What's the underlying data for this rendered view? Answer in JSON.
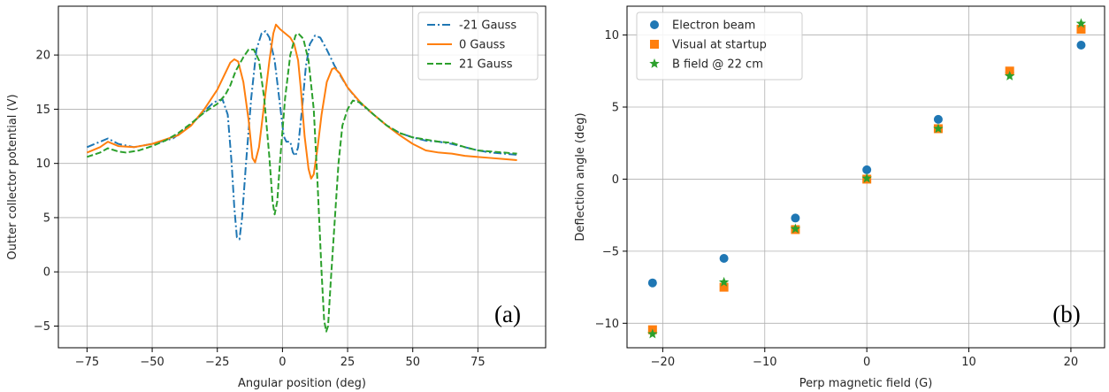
{
  "chart_data": [
    {
      "type": "line",
      "panel_label": "(a)",
      "xlabel": "Angular position (deg)",
      "ylabel": "Outter collector potential (V)",
      "xlim": [
        -86,
        101
      ],
      "ylim": [
        -7,
        24.5
      ],
      "xticks": [
        -75,
        -50,
        -25,
        0,
        25,
        50,
        75
      ],
      "xtick_labels": [
        "−75",
        "−50",
        "−25",
        "0",
        "25",
        "50",
        "75"
      ],
      "yticks": [
        -5,
        0,
        5,
        10,
        15,
        20
      ],
      "ytick_labels": [
        "−5",
        "0",
        "5",
        "10",
        "15",
        "20"
      ],
      "grid": true,
      "legend_position": "top-right",
      "series": [
        {
          "name": "-21 Gauss",
          "color": "#1f77b4",
          "style": "dashdot",
          "points": [
            [
              -75,
              11.5
            ],
            [
              -70,
              12.0
            ],
            [
              -67,
              12.3
            ],
            [
              -63,
              11.8
            ],
            [
              -57,
              11.5
            ],
            [
              -50,
              11.8
            ],
            [
              -42,
              12.3
            ],
            [
              -35,
              13.6
            ],
            [
              -30,
              14.8
            ],
            [
              -27,
              15.5
            ],
            [
              -25,
              15.8
            ],
            [
              -23,
              15.9
            ],
            [
              -21,
              14.5
            ],
            [
              -19.5,
              10.0
            ],
            [
              -18.5,
              6.0
            ],
            [
              -17.5,
              3.2
            ],
            [
              -16.5,
              3.0
            ],
            [
              -15.5,
              5.0
            ],
            [
              -14,
              10.0
            ],
            [
              -12,
              16.0
            ],
            [
              -10,
              20.5
            ],
            [
              -8,
              22.0
            ],
            [
              -6.5,
              22.2
            ],
            [
              -5,
              21.6
            ],
            [
              -3,
              19.5
            ],
            [
              -1,
              15.5
            ],
            [
              0.5,
              12.5
            ],
            [
              1.5,
              12.0
            ],
            [
              3,
              12.0
            ],
            [
              4,
              11.0
            ],
            [
              5,
              10.7
            ],
            [
              6,
              11.5
            ],
            [
              7.5,
              15.0
            ],
            [
              9,
              19.0
            ],
            [
              10.5,
              21.0
            ],
            [
              12.5,
              21.8
            ],
            [
              14.5,
              21.6
            ],
            [
              17,
              20.5
            ],
            [
              20,
              19.0
            ],
            [
              25,
              17.0
            ],
            [
              30,
              15.5
            ],
            [
              35,
              14.5
            ],
            [
              40,
              13.5
            ],
            [
              45,
              12.8
            ],
            [
              50,
              12.4
            ],
            [
              55,
              12.1
            ],
            [
              60,
              12.0
            ],
            [
              65,
              11.8
            ],
            [
              70,
              11.5
            ],
            [
              75,
              11.2
            ],
            [
              80,
              11.0
            ],
            [
              85,
              10.9
            ],
            [
              90,
              10.8
            ]
          ]
        },
        {
          "name": "0 Gauss",
          "color": "#ff7f0e",
          "style": "solid",
          "points": [
            [
              -75,
              11.0
            ],
            [
              -70,
              11.5
            ],
            [
              -67,
              12.0
            ],
            [
              -63,
              11.6
            ],
            [
              -57,
              11.5
            ],
            [
              -50,
              11.8
            ],
            [
              -45,
              12.2
            ],
            [
              -40,
              12.6
            ],
            [
              -35,
              13.5
            ],
            [
              -30,
              15.0
            ],
            [
              -25,
              16.8
            ],
            [
              -22,
              18.3
            ],
            [
              -20,
              19.3
            ],
            [
              -18.5,
              19.6
            ],
            [
              -17,
              19.4
            ],
            [
              -15,
              17.5
            ],
            [
              -13,
              14.0
            ],
            [
              -11.5,
              10.5
            ],
            [
              -10.5,
              10.1
            ],
            [
              -9,
              11.5
            ],
            [
              -7,
              15.5
            ],
            [
              -5,
              19.5
            ],
            [
              -3.5,
              22.0
            ],
            [
              -2.5,
              22.8
            ],
            [
              -1,
              22.4
            ],
            [
              1,
              22.0
            ],
            [
              3,
              21.6
            ],
            [
              4.5,
              21.0
            ],
            [
              6,
              19.5
            ],
            [
              7,
              17.0
            ],
            [
              8.5,
              12.5
            ],
            [
              10,
              9.5
            ],
            [
              11,
              8.6
            ],
            [
              12,
              9.0
            ],
            [
              13.5,
              11.5
            ],
            [
              15,
              14.5
            ],
            [
              17,
              17.5
            ],
            [
              19,
              18.7
            ],
            [
              20,
              18.8
            ],
            [
              22,
              18.3
            ],
            [
              25,
              17.0
            ],
            [
              30,
              15.6
            ],
            [
              35,
              14.5
            ],
            [
              40,
              13.5
            ],
            [
              45,
              12.6
            ],
            [
              50,
              11.8
            ],
            [
              55,
              11.2
            ],
            [
              60,
              11.0
            ],
            [
              65,
              10.9
            ],
            [
              70,
              10.7
            ],
            [
              75,
              10.6
            ],
            [
              80,
              10.5
            ],
            [
              85,
              10.4
            ],
            [
              90,
              10.3
            ]
          ]
        },
        {
          "name": "21 Gauss",
          "color": "#2ca02c",
          "style": "dashed",
          "points": [
            [
              -75,
              10.6
            ],
            [
              -70,
              11.0
            ],
            [
              -67,
              11.4
            ],
            [
              -63,
              11.1
            ],
            [
              -60,
              11.0
            ],
            [
              -55,
              11.2
            ],
            [
              -50,
              11.6
            ],
            [
              -45,
              12.1
            ],
            [
              -40,
              12.8
            ],
            [
              -35,
              13.7
            ],
            [
              -30,
              14.7
            ],
            [
              -25,
              15.5
            ],
            [
              -22,
              16.3
            ],
            [
              -20,
              17.2
            ],
            [
              -18,
              18.5
            ],
            [
              -15,
              19.8
            ],
            [
              -13,
              20.5
            ],
            [
              -11,
              20.5
            ],
            [
              -9,
              19.5
            ],
            [
              -7,
              16.0
            ],
            [
              -5,
              10.5
            ],
            [
              -3.8,
              6.5
            ],
            [
              -3,
              5.3
            ],
            [
              -2,
              6.5
            ],
            [
              -1,
              10.0
            ],
            [
              1,
              16.0
            ],
            [
              3,
              20.0
            ],
            [
              5,
              21.8
            ],
            [
              6,
              22.0
            ],
            [
              8,
              21.5
            ],
            [
              10,
              19.5
            ],
            [
              12,
              15.0
            ],
            [
              13.5,
              8.0
            ],
            [
              15,
              0.0
            ],
            [
              16,
              -4.5
            ],
            [
              16.8,
              -5.5
            ],
            [
              17.5,
              -5.0
            ],
            [
              18.5,
              -1.0
            ],
            [
              20,
              4.5
            ],
            [
              21.5,
              10.0
            ],
            [
              23,
              13.5
            ],
            [
              25,
              15.0
            ],
            [
              27,
              15.8
            ],
            [
              30,
              15.6
            ],
            [
              35,
              14.5
            ],
            [
              40,
              13.5
            ],
            [
              45,
              12.8
            ],
            [
              50,
              12.4
            ],
            [
              55,
              12.2
            ],
            [
              60,
              12.0
            ],
            [
              65,
              11.9
            ],
            [
              70,
              11.5
            ],
            [
              75,
              11.2
            ],
            [
              80,
              11.1
            ],
            [
              85,
              11.0
            ],
            [
              90,
              10.9
            ]
          ]
        }
      ]
    },
    {
      "type": "scatter",
      "panel_label": "(b)",
      "xlabel": "Perp magnetic field (G)",
      "ylabel": "Deflection angle (deg)",
      "xlim": [
        -23.5,
        23.3
      ],
      "ylim": [
        -11.7,
        12.0
      ],
      "xticks": [
        -20,
        -10,
        0,
        10,
        20
      ],
      "xtick_labels": [
        "−20",
        "−10",
        "0",
        "10",
        "20"
      ],
      "yticks": [
        -10,
        -5,
        0,
        5,
        10
      ],
      "ytick_labels": [
        "−10",
        "−5",
        "0",
        "5",
        "10"
      ],
      "grid": true,
      "legend_position": "top-left",
      "series": [
        {
          "name": "Electron beam",
          "color": "#1f77b4",
          "marker": "circle",
          "points": [
            [
              -21,
              -7.2
            ],
            [
              -14,
              -5.5
            ],
            [
              -7,
              -2.7
            ],
            [
              0,
              0.65
            ],
            [
              7,
              4.15
            ],
            [
              14,
              7.4
            ],
            [
              21,
              9.3
            ]
          ]
        },
        {
          "name": "Visual at startup",
          "color": "#ff7f0e",
          "marker": "square",
          "points": [
            [
              -21,
              -10.45
            ],
            [
              -14,
              -7.5
            ],
            [
              -7,
              -3.5
            ],
            [
              0,
              0.0
            ],
            [
              7,
              3.5
            ],
            [
              14,
              7.5
            ],
            [
              21,
              10.4
            ]
          ]
        },
        {
          "name": "B field @ 22 cm",
          "color": "#2ca02c",
          "marker": "star",
          "points": [
            [
              -21,
              -10.75
            ],
            [
              -14,
              -7.15
            ],
            [
              -7,
              -3.45
            ],
            [
              0,
              0.05
            ],
            [
              7,
              3.5
            ],
            [
              14,
              7.15
            ],
            [
              21,
              10.8
            ]
          ]
        }
      ]
    }
  ]
}
